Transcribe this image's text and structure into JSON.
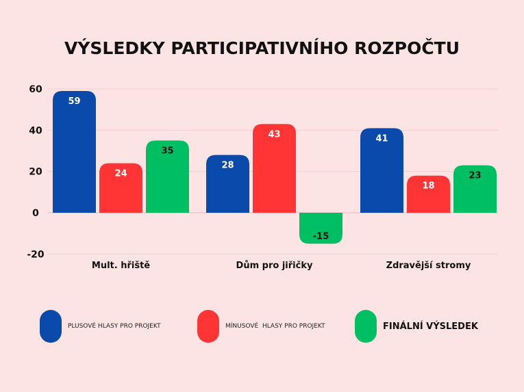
{
  "chart_data": {
    "type": "bar",
    "title": "VÝSLEDKY PARTICIPATIVNÍHO ROZPOČTU",
    "categories": [
      "Mult. hřiště",
      "Dům pro jiřičky",
      "Zdravější stromy"
    ],
    "series": [
      {
        "name": "PLUSOVÉ HLASY PRO PROJEKT",
        "values": [
          59,
          28,
          41
        ],
        "color": "#0a4aab"
      },
      {
        "name": "MÍNUSOVÉ  HLASY PRO PROJEKT",
        "values": [
          24,
          43,
          18
        ],
        "color": "#ff3535"
      },
      {
        "name": "FINÁLNÍ VÝSLEDEK",
        "values": [
          35,
          -15,
          23
        ],
        "color": "#00bf63"
      }
    ],
    "yticks": [
      60,
      40,
      20,
      0,
      -20
    ],
    "ylim": [
      -20,
      60
    ],
    "grid": true,
    "legend": "bottom"
  }
}
